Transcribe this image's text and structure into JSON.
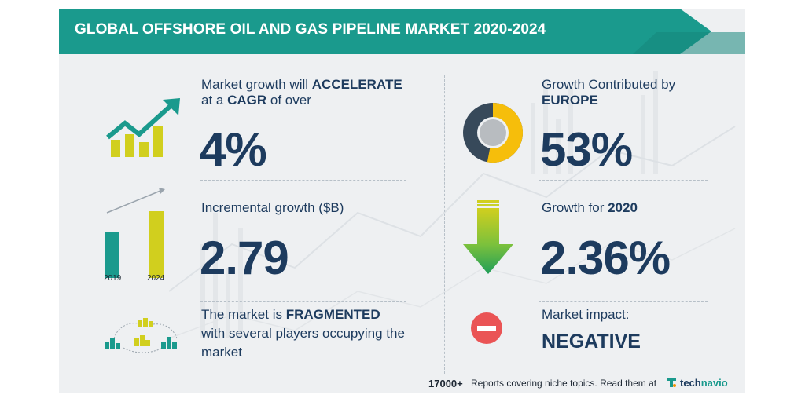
{
  "header": {
    "title": "GLOBAL OFFSHORE OIL AND GAS PIPELINE MARKET 2020-2024"
  },
  "left": {
    "growth": {
      "pre": "Market growth will ",
      "emph": "ACCELERATE",
      "line2_pre": "at a ",
      "line2_emph": "CAGR",
      "line2_post": " of over",
      "value": "4%"
    },
    "incremental": {
      "label": "Incremental growth ($B)",
      "value": "2.79",
      "bar_years": [
        "2019",
        "2024"
      ]
    },
    "fragmented": {
      "pre": "The market is ",
      "emph": "FRAGMENTED",
      "line2": "with several players occupying the",
      "line3": "market"
    }
  },
  "right": {
    "europe": {
      "line1": "Growth Contributed by",
      "line2": "EUROPE",
      "value": "53%",
      "share": 0.53
    },
    "growth2020": {
      "pre": "Growth for ",
      "emph": "2020",
      "value": "2.36%"
    },
    "impact": {
      "label": "Market impact:",
      "value": "NEGATIVE"
    }
  },
  "footer": {
    "count": "17000+",
    "text": "Reports covering niche topics. Read them at",
    "brand_tech": "tech",
    "brand_navio": "navio"
  },
  "colors": {
    "teal": "#1a9a8d",
    "navy": "#1d3b5e",
    "yellow": "#d1cf1e",
    "gold": "#f6be0b",
    "dark_slate": "#37495a",
    "green": "#3cb043",
    "red": "#ea5455",
    "orange": "#f39200"
  }
}
